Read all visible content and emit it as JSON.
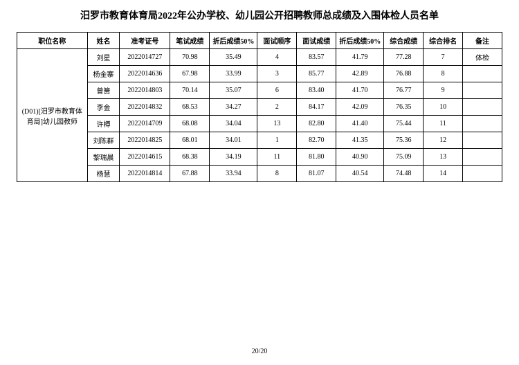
{
  "title": "汨罗市教育体育局2022年公办学校、幼儿园公开招聘教师总成绩及入围体检人员名单",
  "headers": {
    "position": "职位名称",
    "name": "姓名",
    "examId": "准考证号",
    "written": "笔试成绩",
    "written50": "折后成绩50%",
    "order": "面试顺序",
    "interview": "面试成绩",
    "interview50": "折后成绩50%",
    "total": "综合成绩",
    "rank": "综合排名",
    "remark": "备注"
  },
  "positionName": "(D01)[汨罗市教育体育局]幼儿园教师",
  "rows": [
    {
      "name": "刘星",
      "examId": "2022014727",
      "written": "70.98",
      "written50": "35.49",
      "order": "4",
      "interview": "83.57",
      "interview50": "41.79",
      "total": "77.28",
      "rank": "7",
      "remark": "体检"
    },
    {
      "name": "杨金寨",
      "examId": "2022014636",
      "written": "67.98",
      "written50": "33.99",
      "order": "3",
      "interview": "85.77",
      "interview50": "42.89",
      "total": "76.88",
      "rank": "8",
      "remark": ""
    },
    {
      "name": "曾簧",
      "examId": "2022014803",
      "written": "70.14",
      "written50": "35.07",
      "order": "6",
      "interview": "83.40",
      "interview50": "41.70",
      "total": "76.77",
      "rank": "9",
      "remark": ""
    },
    {
      "name": "李金",
      "examId": "2022014832",
      "written": "68.53",
      "written50": "34.27",
      "order": "2",
      "interview": "84.17",
      "interview50": "42.09",
      "total": "76.35",
      "rank": "10",
      "remark": ""
    },
    {
      "name": "许樽",
      "examId": "2022014709",
      "written": "68.08",
      "written50": "34.04",
      "order": "13",
      "interview": "82.80",
      "interview50": "41.40",
      "total": "75.44",
      "rank": "11",
      "remark": ""
    },
    {
      "name": "刘陈群",
      "examId": "2022014825",
      "written": "68.01",
      "written50": "34.01",
      "order": "1",
      "interview": "82.70",
      "interview50": "41.35",
      "total": "75.36",
      "rank": "12",
      "remark": ""
    },
    {
      "name": "黎瑞晨",
      "examId": "2022014615",
      "written": "68.38",
      "written50": "34.19",
      "order": "11",
      "interview": "81.80",
      "interview50": "40.90",
      "total": "75.09",
      "rank": "13",
      "remark": ""
    },
    {
      "name": "杨慧",
      "examId": "2022014814",
      "written": "67.88",
      "written50": "33.94",
      "order": "8",
      "interview": "81.07",
      "interview50": "40.54",
      "total": "74.48",
      "rank": "14",
      "remark": ""
    }
  ],
  "pageNumber": "20/20"
}
